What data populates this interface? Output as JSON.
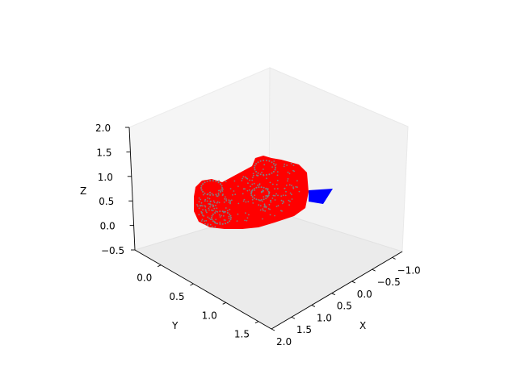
{
  "chart_data": {
    "type": "scatter",
    "projection": "3d",
    "title": "",
    "xlabel": "X",
    "ylabel": "Y",
    "zlabel": "Z",
    "xlim": [
      -1.25,
      2.0
    ],
    "ylim": [
      -0.4,
      1.7
    ],
    "zlim": [
      -0.5,
      2.0
    ],
    "xticks": [
      "−1.0",
      "−0.5",
      "0.0",
      "0.5",
      "1.0",
      "1.5",
      "2.0"
    ],
    "yticks": [
      "0.0",
      "0.5",
      "1.0",
      "1.5"
    ],
    "zticks": [
      "−0.5",
      "0.0",
      "0.5",
      "1.0",
      "1.5",
      "2.0"
    ],
    "xtick_values": [
      -1.0,
      -0.5,
      0.0,
      0.5,
      1.0,
      1.5,
      2.0
    ],
    "ytick_values": [
      0.0,
      0.5,
      1.0,
      1.5
    ],
    "ztick_values": [
      -0.5,
      0.0,
      0.5,
      1.0,
      1.5,
      2.0
    ],
    "series": [
      {
        "name": "object-surface-points",
        "kind": "dense point cloud (sofa-like shape)",
        "color": "#ff0000",
        "marker_edge_color": "#808080",
        "approx_extent": {
          "x": [
            0.0,
            1.3
          ],
          "y": [
            -0.1,
            1.2
          ],
          "z": [
            0.55,
            1.4
          ]
        }
      },
      {
        "name": "direction-arrow",
        "kind": "arrow head",
        "color": "#0000ff",
        "approx_position": {
          "x": -0.4,
          "y": 0.3,
          "z": 0.8
        }
      }
    ],
    "grid": false,
    "legend": "none"
  }
}
